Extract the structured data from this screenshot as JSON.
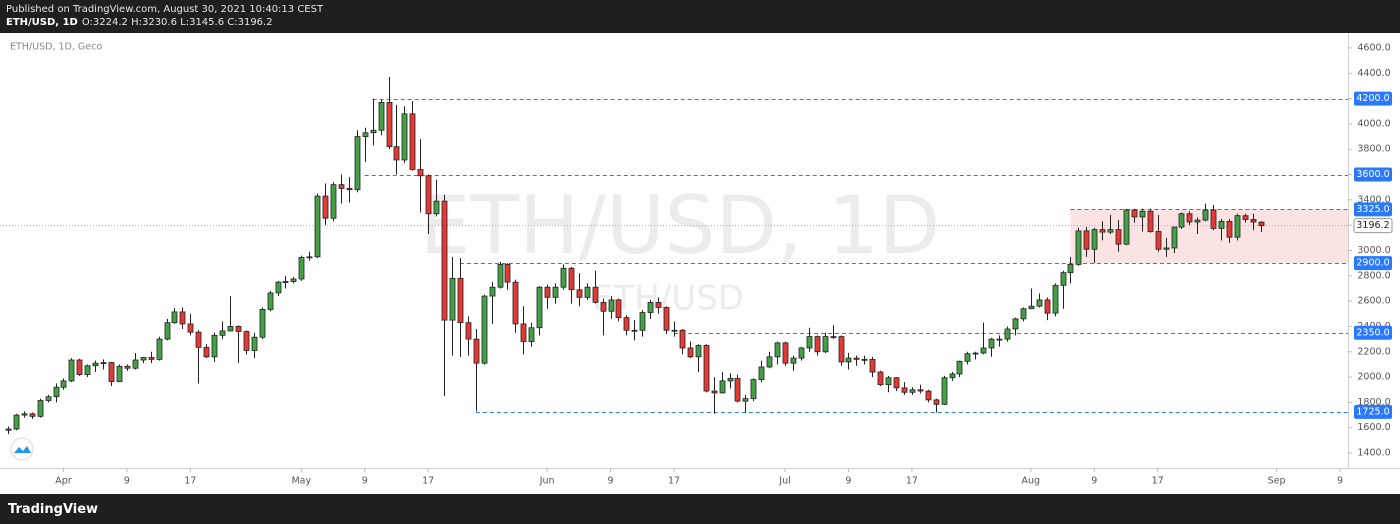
{
  "header": {
    "published": "Published on TradingView.com, August 30, 2021 10:40:13 CEST",
    "symbol": "ETH/USD, 1D",
    "ohlc": "O:3224.2 H:3230.6 L:3145.6 C:3196.2"
  },
  "footer": {
    "brand": "TradingView"
  },
  "chart_data": {
    "type": "candlestick",
    "title": "ETH/USD, 1D, Geco",
    "watermark": "ETH/USD, 1D",
    "watermark_small": "ETH/USD",
    "up_color": "#43a047",
    "down_color": "#e53935",
    "level_color": "#2979ff",
    "x": [
      "2021-03-25",
      "2021-03-26",
      "2021-03-27",
      "2021-03-28",
      "2021-03-29",
      "2021-03-30",
      "2021-03-31",
      "2021-04-01",
      "2021-04-02",
      "2021-04-03",
      "2021-04-04",
      "2021-04-05",
      "2021-04-06",
      "2021-04-07",
      "2021-04-08",
      "2021-04-09",
      "2021-04-10",
      "2021-04-11",
      "2021-04-12",
      "2021-04-13",
      "2021-04-14",
      "2021-04-15",
      "2021-04-16",
      "2021-04-17",
      "2021-04-18",
      "2021-04-19",
      "2021-04-20",
      "2021-04-21",
      "2021-04-22",
      "2021-04-23",
      "2021-04-24",
      "2021-04-25",
      "2021-04-26",
      "2021-04-27",
      "2021-04-28",
      "2021-04-29",
      "2021-04-30",
      "2021-05-01",
      "2021-05-02",
      "2021-05-03",
      "2021-05-04",
      "2021-05-05",
      "2021-05-06",
      "2021-05-07",
      "2021-05-08",
      "2021-05-09",
      "2021-05-10",
      "2021-05-11",
      "2021-05-12",
      "2021-05-13",
      "2021-05-14",
      "2021-05-15",
      "2021-05-16",
      "2021-05-17",
      "2021-05-18",
      "2021-05-19",
      "2021-05-20",
      "2021-05-21",
      "2021-05-22",
      "2021-05-23",
      "2021-05-24",
      "2021-05-25",
      "2021-05-26",
      "2021-05-27",
      "2021-05-28",
      "2021-05-29",
      "2021-05-30",
      "2021-05-31",
      "2021-06-01",
      "2021-06-02",
      "2021-06-03",
      "2021-06-04",
      "2021-06-05",
      "2021-06-06",
      "2021-06-07",
      "2021-06-08",
      "2021-06-09",
      "2021-06-10",
      "2021-06-11",
      "2021-06-12",
      "2021-06-13",
      "2021-06-14",
      "2021-06-15",
      "2021-06-16",
      "2021-06-17",
      "2021-06-18",
      "2021-06-19",
      "2021-06-20",
      "2021-06-21",
      "2021-06-22",
      "2021-06-23",
      "2021-06-24",
      "2021-06-25",
      "2021-06-26",
      "2021-06-27",
      "2021-06-28",
      "2021-06-29",
      "2021-06-30",
      "2021-07-01",
      "2021-07-02",
      "2021-07-03",
      "2021-07-04",
      "2021-07-05",
      "2021-07-06",
      "2021-07-07",
      "2021-07-08",
      "2021-07-09",
      "2021-07-10",
      "2021-07-11",
      "2021-07-12",
      "2021-07-13",
      "2021-07-14",
      "2021-07-15",
      "2021-07-16",
      "2021-07-17",
      "2021-07-18",
      "2021-07-19",
      "2021-07-20",
      "2021-07-21",
      "2021-07-22",
      "2021-07-23",
      "2021-07-24",
      "2021-07-25",
      "2021-07-26",
      "2021-07-27",
      "2021-07-28",
      "2021-07-29",
      "2021-07-30",
      "2021-07-31",
      "2021-08-01",
      "2021-08-02",
      "2021-08-03",
      "2021-08-04",
      "2021-08-05",
      "2021-08-06",
      "2021-08-07",
      "2021-08-08",
      "2021-08-09",
      "2021-08-10",
      "2021-08-11",
      "2021-08-12",
      "2021-08-13",
      "2021-08-14",
      "2021-08-15",
      "2021-08-16",
      "2021-08-17",
      "2021-08-18",
      "2021-08-19",
      "2021-08-20",
      "2021-08-21",
      "2021-08-22",
      "2021-08-23",
      "2021-08-24",
      "2021-08-25",
      "2021-08-26",
      "2021-08-27",
      "2021-08-28",
      "2021-08-29",
      "2021-08-30"
    ],
    "open": [
      1580,
      1590,
      1700,
      1710,
      1690,
      1815,
      1845,
      1920,
      1970,
      2135,
      2020,
      2090,
      2110,
      2115,
      1965,
      2085,
      2070,
      2135,
      2155,
      2140,
      2300,
      2430,
      2515,
      2420,
      2355,
      2235,
      2160,
      2330,
      2365,
      2400,
      2360,
      2210,
      2315,
      2535,
      2665,
      2750,
      2755,
      2775,
      2945,
      2950,
      3430,
      3255,
      3520,
      3490,
      3480,
      3900,
      3930,
      3950,
      4170,
      3820,
      3715,
      4080,
      3640,
      3590,
      3290,
      3390,
      2450,
      2780,
      2430,
      2300,
      2110,
      2640,
      2710,
      2890,
      2750,
      2420,
      2280,
      2390,
      2710,
      2630,
      2710,
      2860,
      2690,
      2630,
      2710,
      2590,
      2520,
      2610,
      2470,
      2370,
      2370,
      2510,
      2590,
      2550,
      2370,
      2370,
      2230,
      2160,
      2250,
      1890,
      1875,
      1970,
      1990,
      1810,
      1830,
      1980,
      2080,
      2160,
      2270,
      2110,
      2150,
      2230,
      2320,
      2200,
      2320,
      2320,
      2120,
      2150,
      2140,
      2140,
      2040,
      1940,
      1995,
      1915,
      1880,
      1900,
      1890,
      1820,
      1785,
      1995,
      2025,
      2125,
      2185,
      2190,
      2230,
      2300,
      2300,
      2380,
      2460,
      2540,
      2560,
      2610,
      2505,
      2725,
      2825,
      2890,
      3155,
      3010,
      3165,
      3145,
      3165,
      3050,
      3320,
      3265,
      3310,
      3150,
      3010,
      3020,
      3185,
      3290,
      3225,
      3240,
      3320,
      3175,
      3230,
      3105,
      3275,
      3245,
      3224.2
    ],
    "high": [
      1610,
      1710,
      1730,
      1720,
      1830,
      1860,
      1950,
      1990,
      2150,
      2145,
      2100,
      2130,
      2140,
      2120,
      2100,
      2100,
      2190,
      2160,
      2200,
      2320,
      2460,
      2545,
      2550,
      2500,
      2370,
      2260,
      2350,
      2440,
      2640,
      2410,
      2370,
      2350,
      2550,
      2680,
      2760,
      2800,
      2790,
      2960,
      2990,
      3450,
      3530,
      3540,
      3600,
      3580,
      3950,
      3970,
      4200,
      4190,
      4370,
      4150,
      4140,
      4180,
      3880,
      3600,
      3560,
      3440,
      2950,
      2940,
      2480,
      2380,
      2650,
      2750,
      2910,
      2900,
      2770,
      2560,
      2430,
      2720,
      2730,
      2740,
      2890,
      2870,
      2820,
      2740,
      2840,
      2620,
      2640,
      2620,
      2490,
      2450,
      2530,
      2610,
      2630,
      2560,
      2440,
      2380,
      2280,
      2260,
      2260,
      2000,
      2040,
      2030,
      2020,
      1860,
      1990,
      2130,
      2200,
      2280,
      2280,
      2170,
      2240,
      2390,
      2330,
      2350,
      2410,
      2330,
      2190,
      2170,
      2170,
      2160,
      2050,
      2010,
      2000,
      1960,
      1920,
      1940,
      1900,
      1830,
      2010,
      2040,
      2130,
      2200,
      2200,
      2430,
      2310,
      2330,
      2400,
      2470,
      2550,
      2700,
      2660,
      2630,
      2740,
      2840,
      2950,
      3180,
      3185,
      3180,
      3230,
      3280,
      3240,
      3330,
      3330,
      3330,
      3330,
      3280,
      3100,
      3190,
      3300,
      3310,
      3260,
      3370,
      3360,
      3250,
      3250,
      3290,
      3290,
      3290,
      3230.6
    ],
    "low": [
      1550,
      1580,
      1680,
      1670,
      1680,
      1800,
      1800,
      1900,
      1960,
      2010,
      2000,
      2040,
      2060,
      1930,
      1960,
      2050,
      2060,
      2110,
      2110,
      2130,
      2290,
      2420,
      2380,
      2330,
      1950,
      2150,
      2120,
      2300,
      2360,
      2110,
      2180,
      2150,
      2300,
      2520,
      2640,
      2700,
      2740,
      2760,
      2920,
      2940,
      3200,
      3230,
      3370,
      3380,
      3460,
      3700,
      3830,
      3910,
      3800,
      3600,
      3690,
      3630,
      3300,
      3130,
      3270,
      1850,
      2170,
      2160,
      2170,
      1730,
      2100,
      2420,
      2700,
      2690,
      2350,
      2180,
      2240,
      2330,
      2540,
      2580,
      2690,
      2580,
      2560,
      2610,
      2580,
      2330,
      2460,
      2440,
      2330,
      2290,
      2320,
      2460,
      2500,
      2340,
      2320,
      2180,
      2150,
      2040,
      1880,
      1710,
      1870,
      1910,
      1800,
      1720,
      1810,
      1960,
      2070,
      2100,
      2090,
      2050,
      2130,
      2200,
      2170,
      2190,
      2300,
      2090,
      2060,
      2090,
      2100,
      2000,
      1930,
      1880,
      1890,
      1860,
      1860,
      1870,
      1800,
      1720,
      1780,
      1970,
      2000,
      2100,
      2140,
      2180,
      2160,
      2240,
      2280,
      2330,
      2440,
      2540,
      2550,
      2450,
      2480,
      2540,
      2740,
      2880,
      2950,
      2900,
      3080,
      3130,
      2990,
      3040,
      3220,
      3150,
      3140,
      2990,
      2950,
      2980,
      3170,
      3200,
      3130,
      3230,
      3160,
      3080,
      3060,
      3080,
      3220,
      3160,
      3145.6
    ],
    "close": [
      1590,
      1700,
      1710,
      1690,
      1815,
      1845,
      1920,
      1970,
      2135,
      2020,
      2090,
      2110,
      2115,
      1965,
      2085,
      2070,
      2135,
      2155,
      2140,
      2300,
      2430,
      2515,
      2420,
      2355,
      2235,
      2160,
      2330,
      2365,
      2400,
      2360,
      2210,
      2315,
      2535,
      2665,
      2750,
      2755,
      2775,
      2945,
      2950,
      3430,
      3255,
      3520,
      3490,
      3480,
      3900,
      3930,
      3950,
      4170,
      3820,
      3715,
      4080,
      3640,
      3590,
      3290,
      3390,
      2450,
      2780,
      2430,
      2300,
      2110,
      2640,
      2710,
      2890,
      2750,
      2420,
      2280,
      2390,
      2710,
      2630,
      2710,
      2860,
      2690,
      2630,
      2710,
      2590,
      2520,
      2610,
      2470,
      2370,
      2370,
      2510,
      2590,
      2550,
      2370,
      2370,
      2230,
      2160,
      2250,
      1890,
      1875,
      1970,
      1990,
      1810,
      1830,
      1980,
      2080,
      2160,
      2270,
      2110,
      2150,
      2230,
      2320,
      2200,
      2320,
      2320,
      2120,
      2150,
      2140,
      2140,
      2040,
      1940,
      1995,
      1915,
      1880,
      1900,
      1890,
      1820,
      1785,
      1995,
      2025,
      2125,
      2185,
      2190,
      2230,
      2300,
      2300,
      2380,
      2460,
      2540,
      2560,
      2610,
      2505,
      2725,
      2825,
      2890,
      3155,
      3010,
      3165,
      3145,
      3165,
      3050,
      3320,
      3265,
      3310,
      3150,
      3010,
      3020,
      3185,
      3290,
      3225,
      3240,
      3320,
      3175,
      3230,
      3105,
      3275,
      3245,
      3225,
      3196.2
    ],
    "xlim": [
      "2021-03-24",
      "2021-09-10"
    ],
    "xticks": [
      {
        "value": "2021-04-01",
        "label": "Apr"
      },
      {
        "value": "2021-04-09",
        "label": "9"
      },
      {
        "value": "2021-04-17",
        "label": "17"
      },
      {
        "value": "2021-05-01",
        "label": "May"
      },
      {
        "value": "2021-05-09",
        "label": "9"
      },
      {
        "value": "2021-05-17",
        "label": "17"
      },
      {
        "value": "2021-06-01",
        "label": "Jun"
      },
      {
        "value": "2021-06-09",
        "label": "9"
      },
      {
        "value": "2021-06-17",
        "label": "17"
      },
      {
        "value": "2021-07-01",
        "label": "Jul"
      },
      {
        "value": "2021-07-09",
        "label": "9"
      },
      {
        "value": "2021-07-17",
        "label": "17"
      },
      {
        "value": "2021-08-01",
        "label": "Aug"
      },
      {
        "value": "2021-08-09",
        "label": "9"
      },
      {
        "value": "2021-08-17",
        "label": "17"
      },
      {
        "value": "2021-09-01",
        "label": "Sep"
      },
      {
        "value": "2021-09-09",
        "label": "9"
      }
    ],
    "ylim": [
      1282,
      4718
    ],
    "yticks": [
      {
        "value": 1400,
        "label": "1400.0"
      },
      {
        "value": 1600,
        "label": "1600.0"
      },
      {
        "value": 1800,
        "label": "1800.0"
      },
      {
        "value": 2000,
        "label": "2000.0"
      },
      {
        "value": 2200,
        "label": "2200.0"
      },
      {
        "value": 2400,
        "label": "2400.0"
      },
      {
        "value": 2600,
        "label": "2600.0"
      },
      {
        "value": 2800,
        "label": "2800.0"
      },
      {
        "value": 3000,
        "label": "3000.0"
      },
      {
        "value": 3200,
        "label": "3200.0"
      },
      {
        "value": 3400,
        "label": "3400.0"
      },
      {
        "value": 3600,
        "label": "3600.0"
      },
      {
        "value": 3800,
        "label": "3800.0"
      },
      {
        "value": 4000,
        "label": "4000.0"
      },
      {
        "value": 4200,
        "label": "4200.0"
      },
      {
        "value": 4400,
        "label": "4400.0"
      },
      {
        "value": 4600,
        "label": "4600.0"
      }
    ],
    "levels": [
      {
        "value": 4200,
        "label": "4200.0",
        "from": "2021-05-10"
      },
      {
        "value": 3600,
        "label": "3600.0",
        "from": "2021-05-09"
      },
      {
        "value": 3325,
        "label": "3325.0",
        "from": "2021-08-06"
      },
      {
        "value": 2900,
        "label": "2900.0",
        "from": "2021-05-21"
      },
      {
        "value": 2350,
        "label": "2350.0",
        "from": "2021-06-17"
      },
      {
        "value": 1725,
        "label": "1725.0",
        "from": "2021-05-23"
      }
    ],
    "zone": {
      "from": "2021-08-06",
      "low": 2900,
      "high": 3325,
      "color": "rgba(239,83,80,0.16)"
    }
  }
}
